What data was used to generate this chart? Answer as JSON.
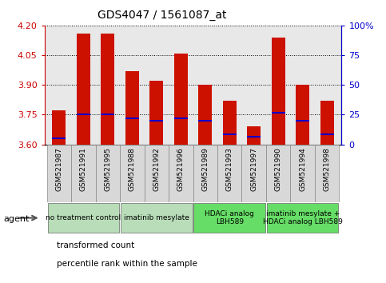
{
  "title": "GDS4047 / 1561087_at",
  "samples": [
    "GSM521987",
    "GSM521991",
    "GSM521995",
    "GSM521988",
    "GSM521992",
    "GSM521996",
    "GSM521989",
    "GSM521993",
    "GSM521997",
    "GSM521990",
    "GSM521994",
    "GSM521998"
  ],
  "bar_values": [
    3.77,
    4.16,
    4.16,
    3.97,
    3.92,
    4.06,
    3.9,
    3.82,
    3.69,
    4.14,
    3.9,
    3.82
  ],
  "percentile_values": [
    3.63,
    3.75,
    3.75,
    3.73,
    3.72,
    3.73,
    3.72,
    3.65,
    3.64,
    3.76,
    3.72,
    3.65
  ],
  "ylim_left": [
    3.6,
    4.2
  ],
  "ylim_right": [
    0,
    100
  ],
  "yticks_left": [
    3.6,
    3.75,
    3.9,
    4.05,
    4.2
  ],
  "yticks_right": [
    0,
    25,
    50,
    75,
    100
  ],
  "bar_color": "#cc1100",
  "percentile_color": "#0000cc",
  "groups": [
    {
      "label": "no treatment control",
      "start": 0,
      "end": 3,
      "color": "#b8ddb8"
    },
    {
      "label": "imatinib mesylate",
      "start": 3,
      "end": 6,
      "color": "#b8ddb8"
    },
    {
      "label": "HDACi analog\nLBH589",
      "start": 6,
      "end": 9,
      "color": "#66dd66"
    },
    {
      "label": "imatinib mesylate +\nHDACi analog LBH589",
      "start": 9,
      "end": 12,
      "color": "#66dd66"
    }
  ],
  "agent_label": "agent",
  "legend_items": [
    {
      "label": "transformed count",
      "color": "#cc1100"
    },
    {
      "label": "percentile rank within the sample",
      "color": "#0000cc"
    }
  ],
  "left_axis_color": "#cc0000",
  "right_axis_color": "#0000cc",
  "bar_bottom": 3.6,
  "plot_bg": "#e8e8e8",
  "bar_width": 0.55,
  "tick_label_fontsize": 6.5,
  "title_fontsize": 10,
  "group_label_fontsize": 6.5,
  "legend_fontsize": 7.5
}
